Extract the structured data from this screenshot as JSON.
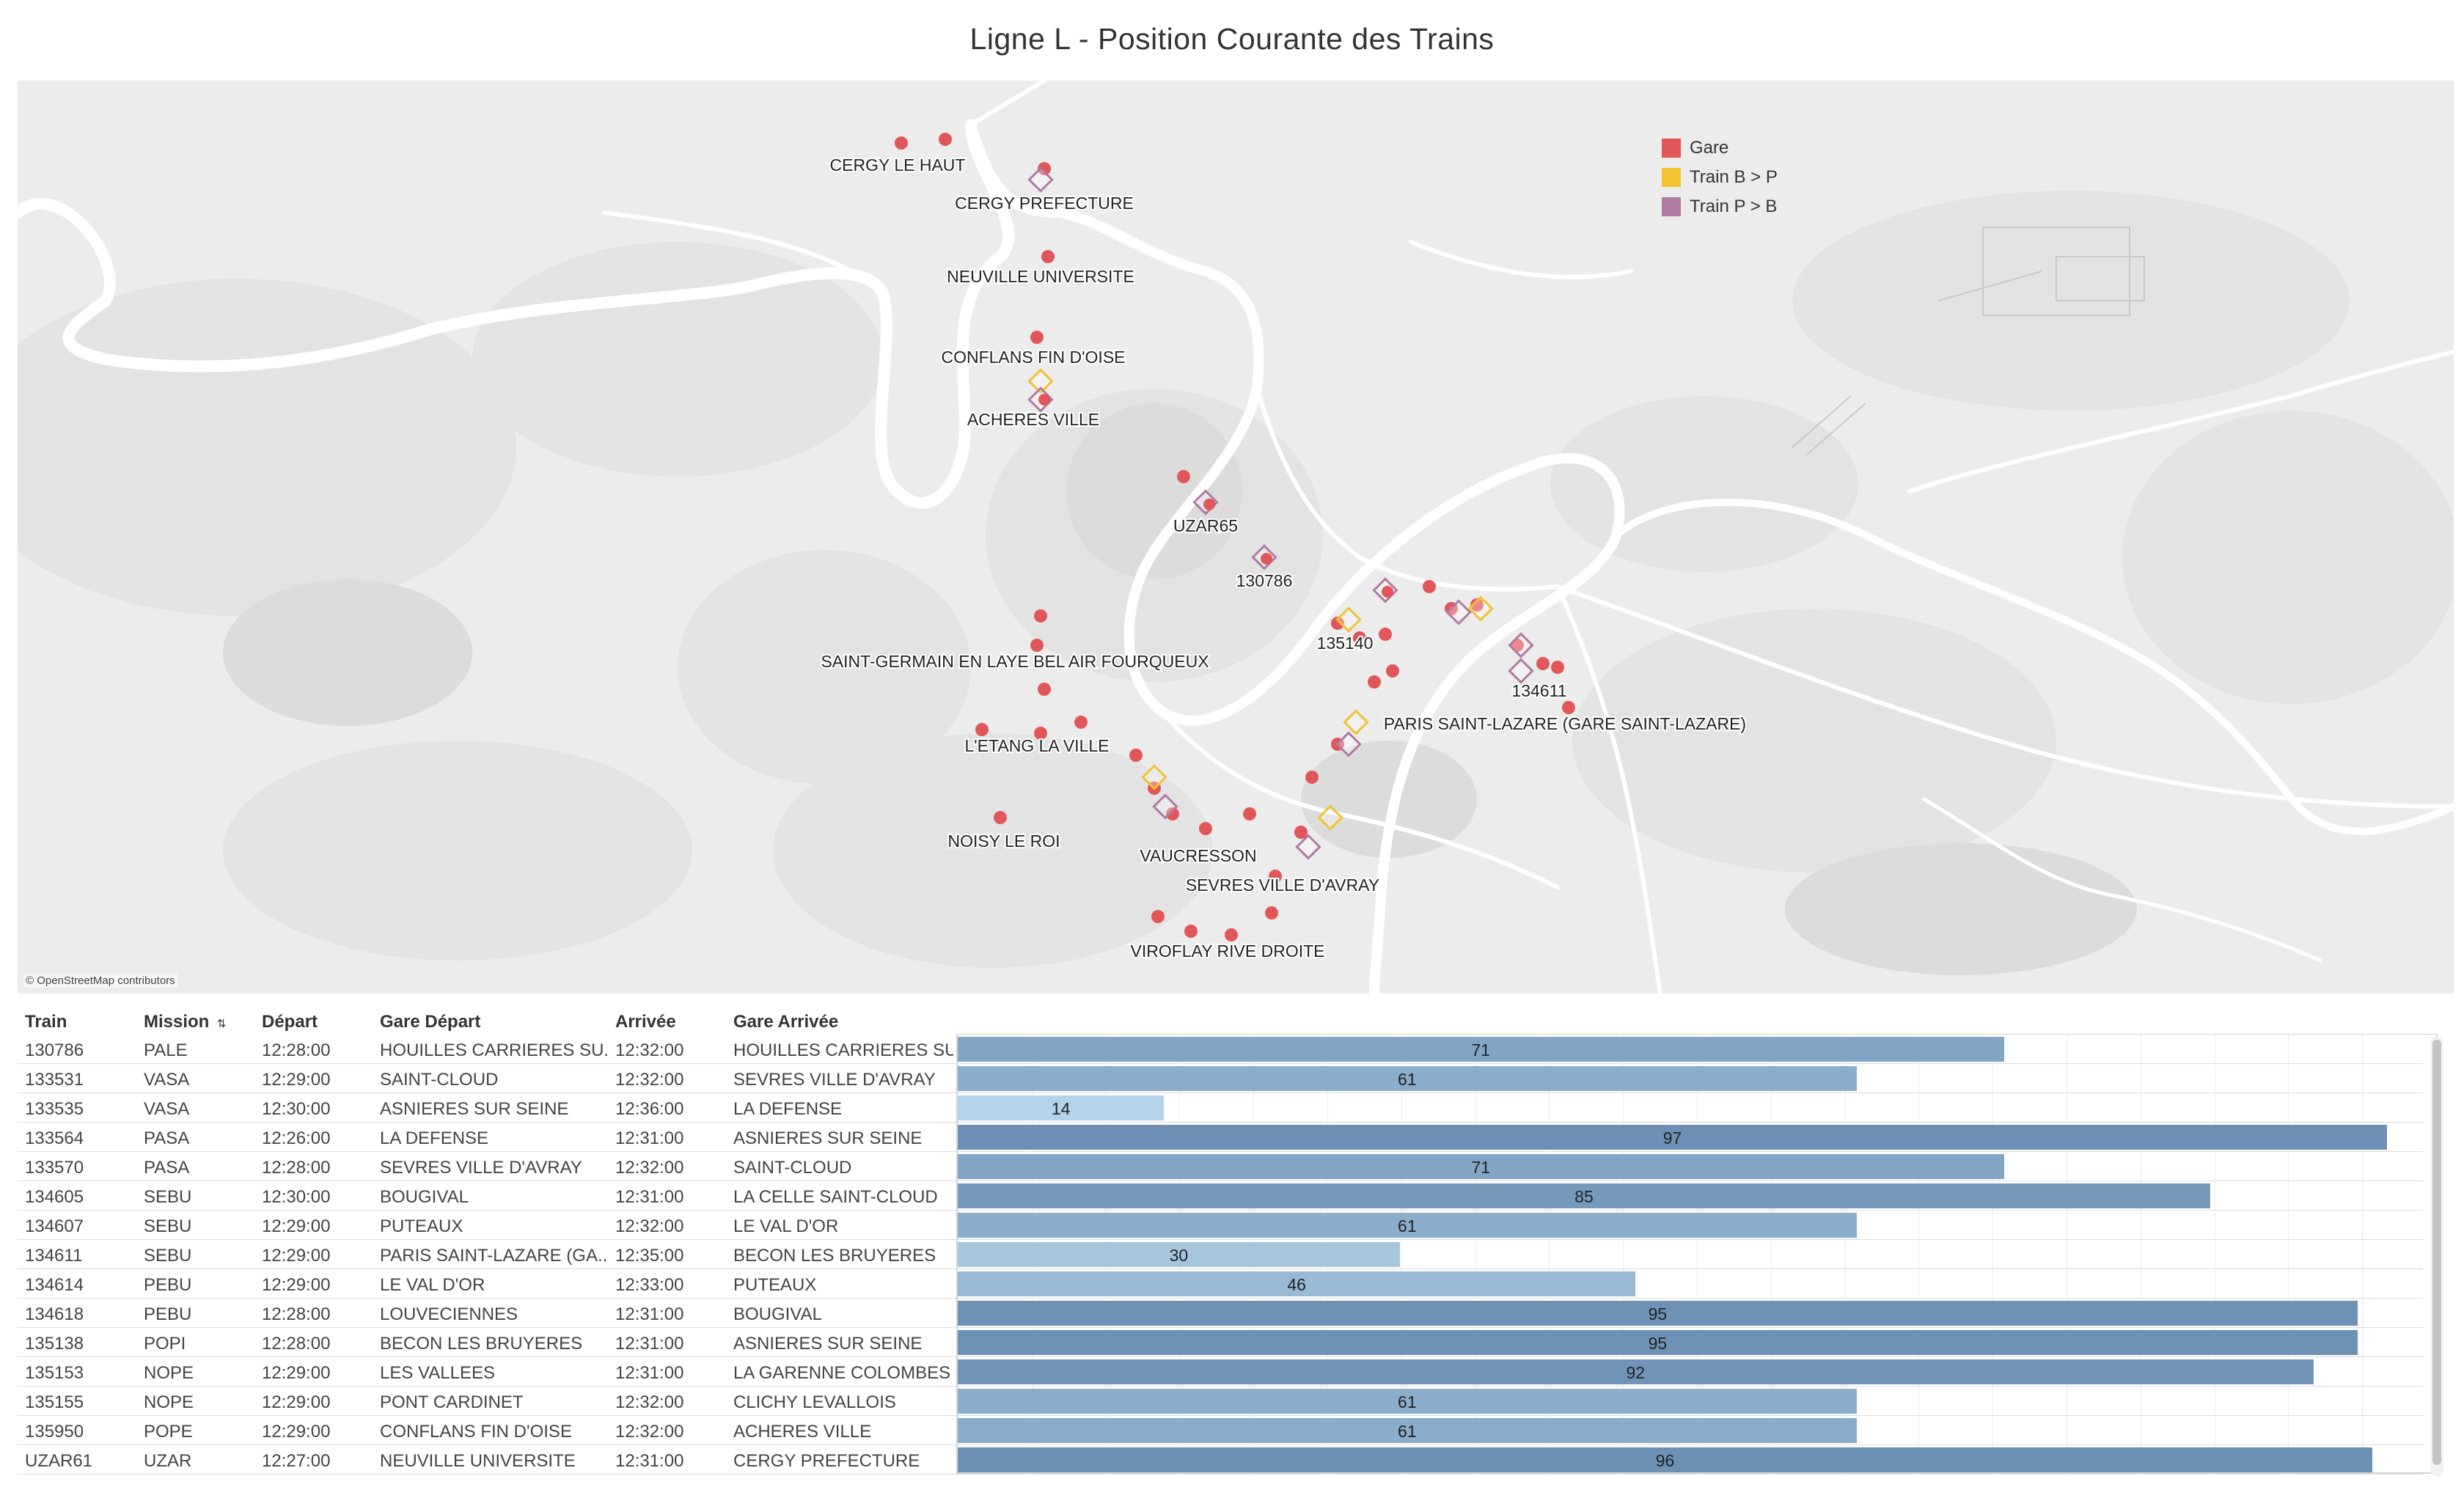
{
  "title": "Ligne L - Position Courante des Trains",
  "map": {
    "attribution": "© OpenStreetMap contributors",
    "legend": [
      {
        "label": "Gare",
        "color": "#e15759"
      },
      {
        "label": "Train B > P",
        "color": "#f1c232"
      },
      {
        "label": "Train P > B",
        "color": "#b07aa1"
      }
    ],
    "labels": [
      "CERGY LE HAUT",
      "CERGY PREFECTURE",
      "NEUVILLE UNIVERSITE",
      "CONFLANS FIN D'OISE",
      "ACHERES VILLE",
      "UZAR65",
      "130786",
      "135140",
      "134611",
      "SAINT-GERMAIN EN LAYE BEL AIR FOURQUEUX",
      "PARIS SAINT-LAZARE (GARE SAINT-LAZARE)",
      "L'ETANG LA VILLE",
      "NOISY LE ROI",
      "VAUCRESSON",
      "SEVRES VILLE D'AVRAY",
      "VIROFLAY RIVE DROITE"
    ]
  },
  "table": {
    "headers": {
      "train": "Train",
      "mission": "Mission",
      "depart": "Départ",
      "gare_depart": "Gare Départ",
      "arrivee": "Arrivée",
      "gare_arrivee": "Gare Arrivée"
    },
    "sort_icon": "sort-ascending-icon",
    "rows": [
      {
        "train": "130786",
        "mission": "PALE",
        "depart": "12:28:00",
        "gare_depart": "HOUILLES CARRIERES SU..",
        "arrivee": "12:32:00",
        "gare_arrivee": "HOUILLES CARRIERES SU..",
        "pct": 71
      },
      {
        "train": "133531",
        "mission": "VASA",
        "depart": "12:29:00",
        "gare_depart": "SAINT-CLOUD",
        "arrivee": "12:32:00",
        "gare_arrivee": "SEVRES VILLE D'AVRAY",
        "pct": 61
      },
      {
        "train": "133535",
        "mission": "VASA",
        "depart": "12:30:00",
        "gare_depart": "ASNIERES SUR SEINE",
        "arrivee": "12:36:00",
        "gare_arrivee": "LA DEFENSE",
        "pct": 14
      },
      {
        "train": "133564",
        "mission": "PASA",
        "depart": "12:26:00",
        "gare_depart": "LA DEFENSE",
        "arrivee": "12:31:00",
        "gare_arrivee": "ASNIERES SUR SEINE",
        "pct": 97
      },
      {
        "train": "133570",
        "mission": "PASA",
        "depart": "12:28:00",
        "gare_depart": "SEVRES VILLE D'AVRAY",
        "arrivee": "12:32:00",
        "gare_arrivee": "SAINT-CLOUD",
        "pct": 71
      },
      {
        "train": "134605",
        "mission": "SEBU",
        "depart": "12:30:00",
        "gare_depart": "BOUGIVAL",
        "arrivee": "12:31:00",
        "gare_arrivee": "LA CELLE SAINT-CLOUD",
        "pct": 85
      },
      {
        "train": "134607",
        "mission": "SEBU",
        "depart": "12:29:00",
        "gare_depart": "PUTEAUX",
        "arrivee": "12:32:00",
        "gare_arrivee": "LE VAL D'OR",
        "pct": 61
      },
      {
        "train": "134611",
        "mission": "SEBU",
        "depart": "12:29:00",
        "gare_depart": "PARIS SAINT-LAZARE (GA..",
        "arrivee": "12:35:00",
        "gare_arrivee": "BECON LES BRUYERES",
        "pct": 30
      },
      {
        "train": "134614",
        "mission": "PEBU",
        "depart": "12:29:00",
        "gare_depart": "LE VAL D'OR",
        "arrivee": "12:33:00",
        "gare_arrivee": "PUTEAUX",
        "pct": 46
      },
      {
        "train": "134618",
        "mission": "PEBU",
        "depart": "12:28:00",
        "gare_depart": "LOUVECIENNES",
        "arrivee": "12:31:00",
        "gare_arrivee": "BOUGIVAL",
        "pct": 95
      },
      {
        "train": "135138",
        "mission": "POPI",
        "depart": "12:28:00",
        "gare_depart": "BECON LES BRUYERES",
        "arrivee": "12:31:00",
        "gare_arrivee": "ASNIERES SUR SEINE",
        "pct": 95
      },
      {
        "train": "135153",
        "mission": "NOPE",
        "depart": "12:29:00",
        "gare_depart": "LES VALLEES",
        "arrivee": "12:31:00",
        "gare_arrivee": "LA GARENNE COLOMBES",
        "pct": 92
      },
      {
        "train": "135155",
        "mission": "NOPE",
        "depart": "12:29:00",
        "gare_depart": "PONT CARDINET",
        "arrivee": "12:32:00",
        "gare_arrivee": "CLICHY LEVALLOIS",
        "pct": 61
      },
      {
        "train": "135950",
        "mission": "POPE",
        "depart": "12:29:00",
        "gare_depart": "CONFLANS FIN D'OISE",
        "arrivee": "12:32:00",
        "gare_arrivee": "ACHERES VILLE",
        "pct": 61
      },
      {
        "train": "UZAR61",
        "mission": "UZAR",
        "depart": "12:27:00",
        "gare_depart": "NEUVILLE UNIVERSITE",
        "arrivee": "12:31:00",
        "gare_arrivee": "CERGY PREFECTURE",
        "pct": 96
      }
    ]
  },
  "bar_colors": {
    "low": "#b8d6ea",
    "high": "#6a8db3"
  }
}
